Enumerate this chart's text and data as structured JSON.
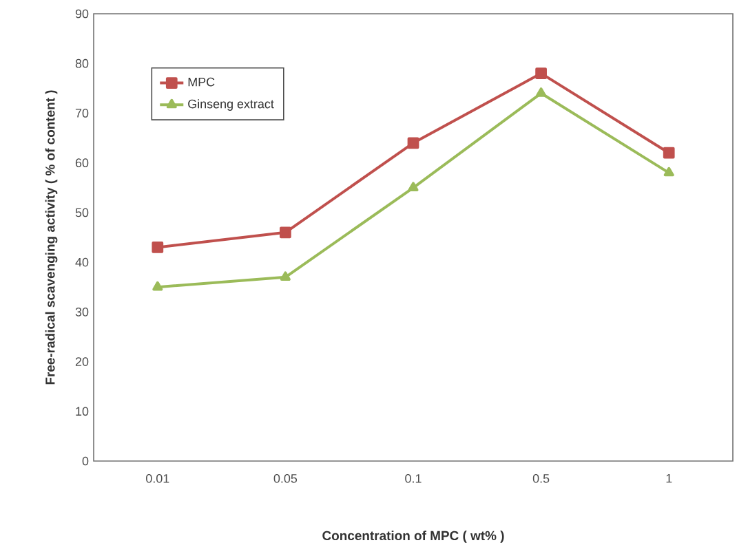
{
  "chart_data": {
    "type": "line",
    "xlabel": "Concentration of MPC ( wt% )",
    "ylabel": "Free-radical scavenging activity ( % of content )",
    "categories": [
      "0.01",
      "0.05",
      "0.1",
      "0.5",
      "1"
    ],
    "series": [
      {
        "name": "MPC",
        "color": "#c0504d",
        "marker": "square",
        "values": [
          43,
          46,
          64,
          78,
          62
        ]
      },
      {
        "name": "Ginseng extract",
        "color": "#9bbb59",
        "marker": "triangle",
        "values": [
          35,
          37,
          55,
          74,
          58
        ]
      }
    ],
    "ylim": [
      0,
      90
    ],
    "yticks": [
      0,
      10,
      20,
      30,
      40,
      50,
      60,
      70,
      80,
      90
    ],
    "legend": "top left",
    "grid": false
  }
}
